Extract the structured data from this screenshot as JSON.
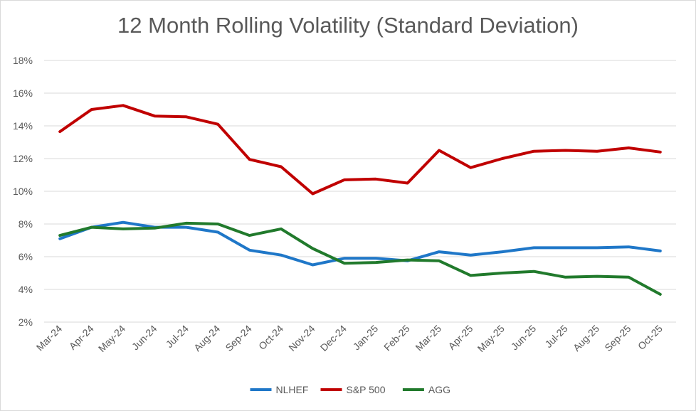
{
  "chart_data": {
    "type": "line",
    "title": "12 Month Rolling Volatility (Standard Deviation)",
    "xlabel": "",
    "ylabel": "",
    "ylim": [
      2,
      18
    ],
    "y_ticks": [
      "2%",
      "4%",
      "6%",
      "8%",
      "10%",
      "12%",
      "14%",
      "16%",
      "18%"
    ],
    "y_tick_values": [
      2,
      4,
      6,
      8,
      10,
      12,
      14,
      16,
      18
    ],
    "categories": [
      "Mar-24",
      "Apr-24",
      "May-24",
      "Jun-24",
      "Jul-24",
      "Aug-24",
      "Sep-24",
      "Oct-24",
      "Nov-24",
      "Dec-24",
      "Jan-25",
      "Feb-25",
      "Mar-25",
      "Apr-25",
      "May-25",
      "Jun-25",
      "Jul-25",
      "Aug-25",
      "Sep-25",
      "Oct-25"
    ],
    "series": [
      {
        "name": "NLHEF",
        "color": "#1f77c8",
        "values": [
          7.1,
          7.8,
          8.1,
          7.8,
          7.8,
          7.5,
          6.4,
          6.1,
          5.5,
          5.9,
          5.9,
          5.75,
          6.3,
          6.1,
          6.3,
          6.55,
          6.55,
          6.55,
          6.6,
          6.35
        ]
      },
      {
        "name": "S&P 500",
        "color": "#c00000",
        "values": [
          13.65,
          15.0,
          15.25,
          14.6,
          14.55,
          14.1,
          11.95,
          11.5,
          9.85,
          10.7,
          10.75,
          10.5,
          12.5,
          11.45,
          12.0,
          12.45,
          12.5,
          12.45,
          12.65,
          12.4
        ]
      },
      {
        "name": "AGG",
        "color": "#217a2c",
        "values": [
          7.3,
          7.8,
          7.7,
          7.75,
          8.05,
          8.0,
          7.3,
          7.7,
          6.5,
          5.6,
          5.65,
          5.8,
          5.75,
          4.85,
          5.0,
          5.1,
          4.75,
          4.8,
          4.75,
          3.7
        ]
      }
    ],
    "legend_position": "bottom-center",
    "grid": true
  }
}
